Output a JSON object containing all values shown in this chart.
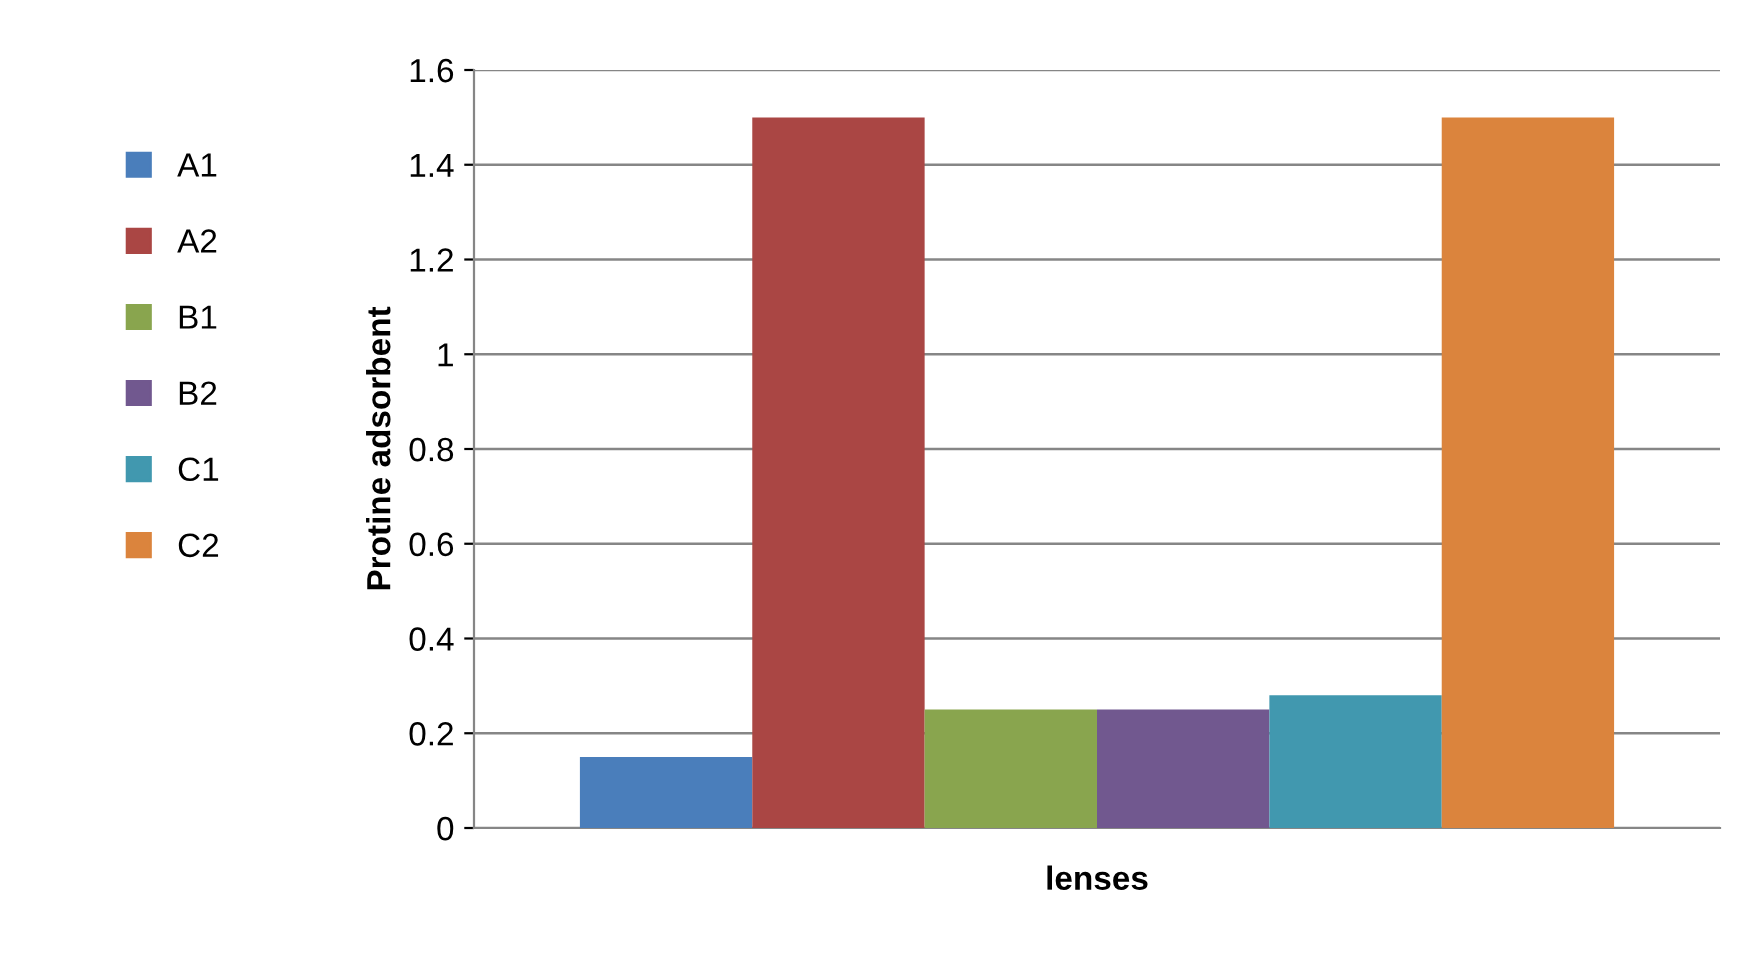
{
  "chart_data": {
    "type": "bar",
    "xlabel": "lenses",
    "ylabel": "Protine adsorbent",
    "categories": [
      null
    ],
    "series": [
      {
        "name": "A1",
        "color": "#4a7ebb",
        "values": [
          0.15
        ]
      },
      {
        "name": "A2",
        "color": "#aa4644",
        "values": [
          1.5
        ]
      },
      {
        "name": "B1",
        "color": "#89a54e",
        "values": [
          0.25
        ]
      },
      {
        "name": "B2",
        "color": "#71588f",
        "values": [
          0.25
        ]
      },
      {
        "name": "C1",
        "color": "#4198af",
        "values": [
          0.28
        ]
      },
      {
        "name": "C2",
        "color": "#db843d",
        "values": [
          1.5
        ]
      }
    ],
    "ylim": [
      0,
      1.6
    ],
    "yticks": [
      0,
      0.2,
      0.4,
      0.6,
      0.8,
      1,
      1.2,
      1.4,
      1.6
    ],
    "grid": "y",
    "legend": "left"
  }
}
